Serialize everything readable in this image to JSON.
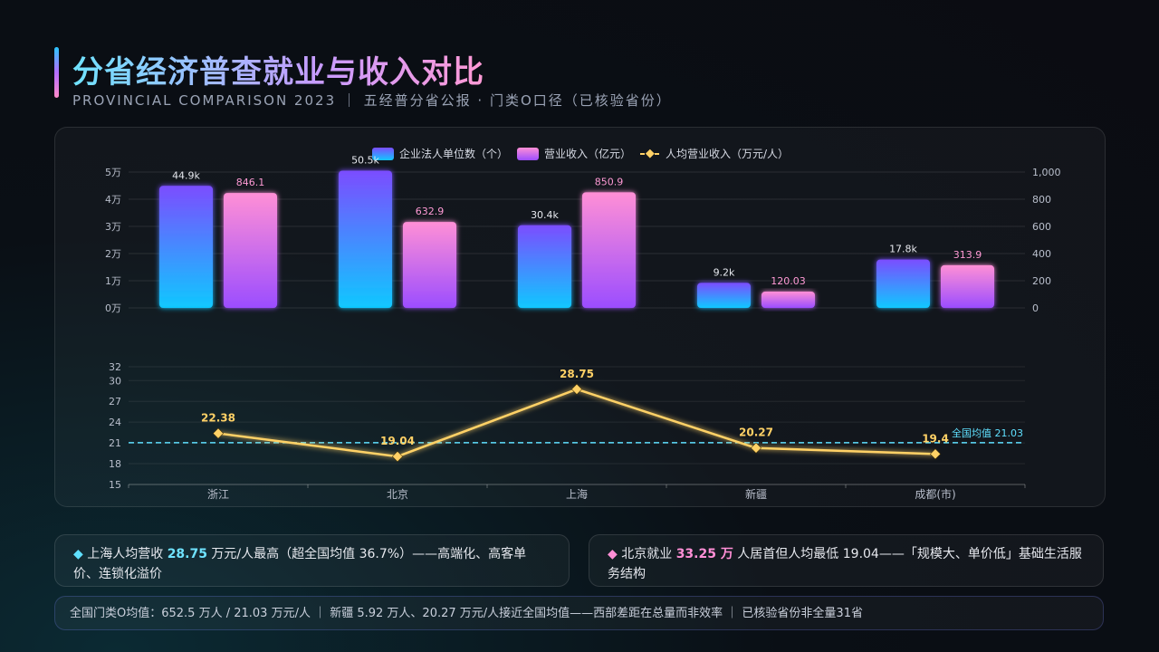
{
  "header": {
    "title": "分省经济普查就业与收入对比",
    "subtitle": "PROVINCIAL COMPARISON 2023 ｜ 五经普分省公报 · 门类O口径（已核验省份）"
  },
  "colors": {
    "units_bar_top": "#7b4dff",
    "units_bar_bottom": "#10c8ff",
    "revenue_bar_top": "#ff8fd6",
    "revenue_bar_bottom": "#9b4dff",
    "line": "#ffd166",
    "avg_line": "#5fe0ff"
  },
  "chart_data": [
    {
      "type": "bar",
      "categories": [
        "浙江",
        "北京",
        "上海",
        "新疆",
        "成都(市)"
      ],
      "series": [
        {
          "name": "企业法人单位数（个）",
          "axis": "left",
          "values": [
            44900,
            50500,
            30400,
            9200,
            17800
          ],
          "labels": [
            "44.9k",
            "50.5k",
            "30.4k",
            "9.2k",
            "17.8k"
          ]
        },
        {
          "name": "营业收入（亿元）",
          "axis": "right",
          "values": [
            846.1,
            632.9,
            850.9,
            120.03,
            313.9
          ],
          "labels": [
            "846.1",
            "632.9",
            "850.9",
            "120.03",
            "313.9"
          ]
        }
      ],
      "left_axis": {
        "ylim": [
          0,
          50000
        ],
        "ticks": [
          "0万",
          "1万",
          "2万",
          "3万",
          "4万",
          "5万"
        ]
      },
      "right_axis": {
        "ylim": [
          0,
          1000
        ],
        "ticks": [
          "0",
          "200",
          "400",
          "600",
          "800",
          "1,000"
        ]
      },
      "legend": "top-center"
    },
    {
      "type": "line",
      "categories": [
        "浙江",
        "北京",
        "上海",
        "新疆",
        "成都(市)"
      ],
      "series": [
        {
          "name": "人均营业收入（万元/人）",
          "values": [
            22.38,
            19.04,
            28.75,
            20.27,
            19.4
          ],
          "labels": [
            "22.38",
            "19.04",
            "28.75",
            "20.27",
            "19.4"
          ]
        }
      ],
      "ylim": [
        15,
        32
      ],
      "yticks": [
        "15",
        "18",
        "21",
        "24",
        "27",
        "30",
        "32"
      ],
      "reference_line": {
        "value": 21.03,
        "label": "全国均值 21.03"
      }
    }
  ],
  "cards": {
    "c1": {
      "bullet": "◆",
      "pre": " 上海人均营收 ",
      "value": "28.75",
      "post": " 万元/人最高（超全国均值 36.7%）——高端化、高客单价、连锁化溢价"
    },
    "c2": {
      "bullet": "◆",
      "pre": " 北京就业 ",
      "value": "33.25 万",
      "post": " 人居首但人均最低 19.04——「规模大、单价低」基础生活服务结构"
    },
    "c3": "全国门类O均值：652.5 万人 / 21.03 万元/人 ｜ 新疆 5.92 万人、20.27 万元/人接近全国均值——西部差距在总量而非效率 ｜ 已核验省份非全量31省"
  }
}
